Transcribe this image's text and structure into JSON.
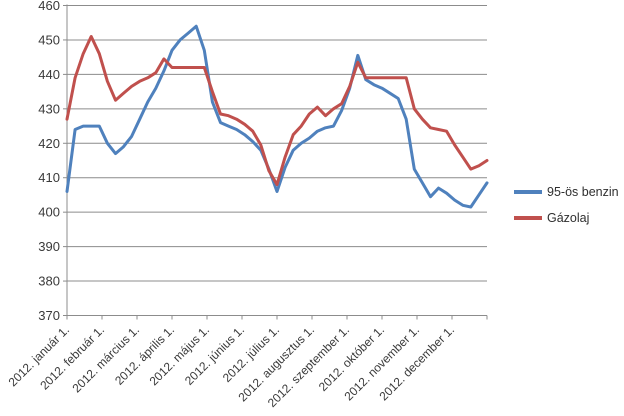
{
  "colors": {
    "background": "#FFFFFF",
    "grid": "#8C8C8C",
    "axis": "#8C8C8C",
    "text": "#3A3A3A",
    "series_benzin": "#4F81BD",
    "series_gazolaj": "#C0504D"
  },
  "chart_data": {
    "type": "line",
    "title": "",
    "xlabel": "",
    "ylabel": "",
    "grid": true,
    "legend_position": "right",
    "x_unit": "weekly points across 2012",
    "x_axis": {
      "labels": [
        "2012. január 1.",
        "2012. február 1.",
        "2012. március 1.",
        "2012. április 1.",
        "2012. május 1.",
        "2012. június 1.",
        "2012. július 1.",
        "2012. augusztus 1.",
        "2012. szeptember 1.",
        "2012. október 1.",
        "2012. november 1.",
        "2012. december 1."
      ]
    },
    "y_axis": {
      "range": [
        370,
        460
      ],
      "step": 10,
      "tick_labels": [
        "370",
        "380",
        "390",
        "400",
        "410",
        "420",
        "430",
        "440",
        "450",
        "460"
      ]
    },
    "series": [
      {
        "name": "95-ös benzin",
        "color": "#4F81BD",
        "values": [
          406,
          424,
          425,
          425,
          425,
          420,
          417,
          419,
          422,
          427,
          432,
          436,
          441,
          447,
          450,
          452,
          454,
          447,
          432,
          426,
          425,
          424,
          422.5,
          420.5,
          418,
          412.5,
          406,
          413,
          418,
          420,
          421.5,
          423.5,
          424.5,
          425,
          429.5,
          436,
          445.5,
          438.5,
          437,
          436,
          434.5,
          433,
          427,
          412.5,
          408.5,
          404.5,
          407,
          405.5,
          403.5,
          402,
          401.5,
          405,
          408.5
        ]
      },
      {
        "name": "Gázolaj",
        "color": "#C0504D",
        "values": [
          427,
          439,
          446,
          451,
          446,
          438,
          432.5,
          434.5,
          436.5,
          438,
          439,
          440.5,
          444.5,
          442,
          442,
          442,
          442,
          442,
          435,
          428.5,
          428,
          427,
          425.5,
          423.5,
          419.5,
          412,
          408,
          416,
          422.5,
          425,
          428.5,
          430.5,
          428,
          430,
          431.5,
          436.5,
          443.5,
          439,
          439,
          439,
          439,
          439,
          439,
          430,
          427,
          424.5,
          424,
          423.5,
          419.5,
          416,
          412.5,
          413.5,
          415
        ]
      }
    ]
  }
}
